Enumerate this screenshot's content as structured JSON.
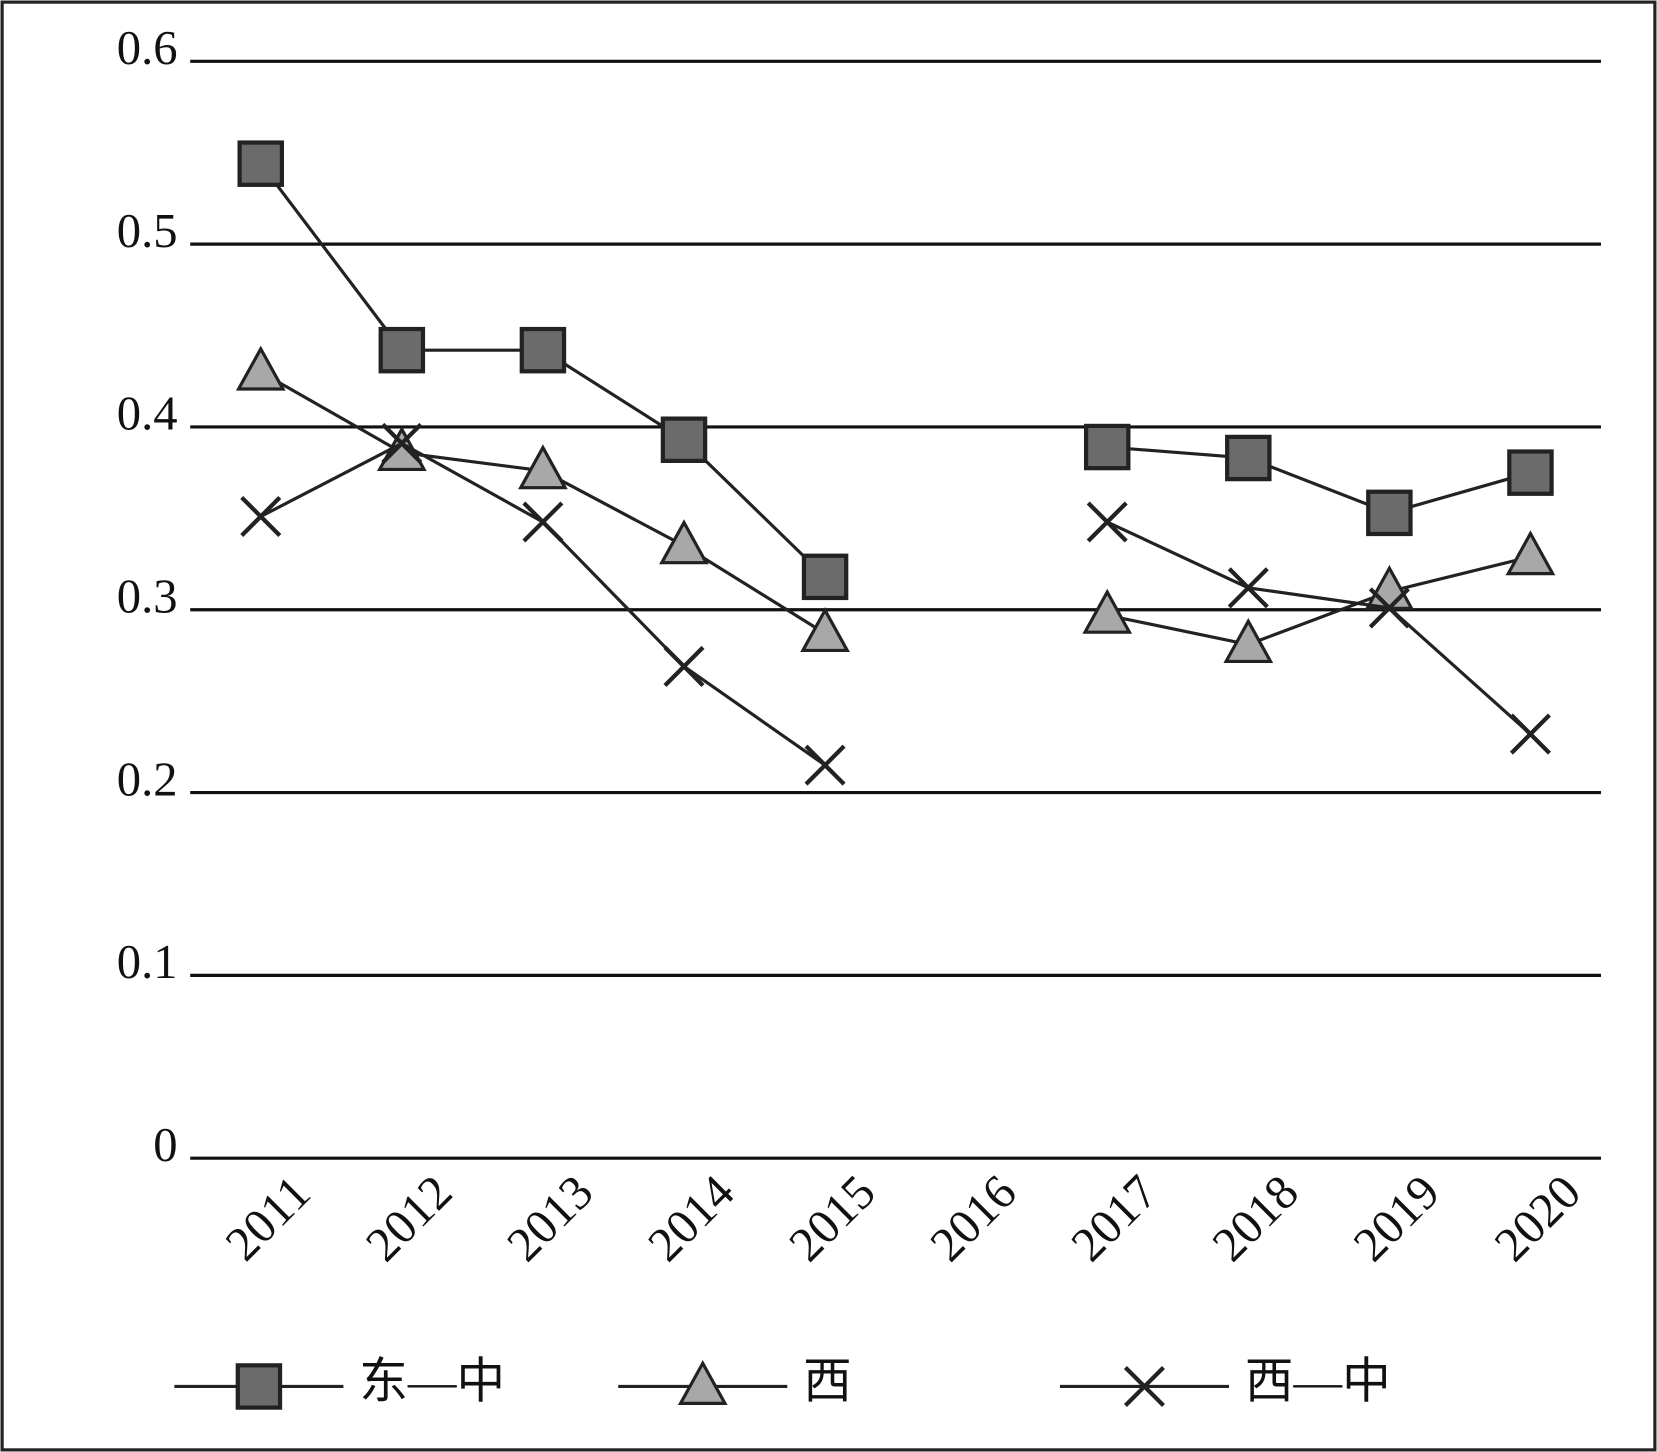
{
  "chart_data": {
    "type": "line",
    "categories": [
      "2011",
      "2012",
      "2013",
      "2014",
      "2015",
      "2016",
      "2017",
      "2018",
      "2019",
      "2020"
    ],
    "series": [
      {
        "name": "东—中",
        "color": "#6b6b6b",
        "marker": "square",
        "values": [
          0.544,
          0.442,
          0.442,
          0.393,
          0.318,
          null,
          0.389,
          0.383,
          0.353,
          0.375
        ]
      },
      {
        "name": "西",
        "color": "#a8a8a8",
        "marker": "triangle",
        "values": [
          0.43,
          0.386,
          0.376,
          0.335,
          0.287,
          null,
          0.297,
          0.281,
          0.31,
          0.329
        ]
      },
      {
        "name": "西—中",
        "color": "#222222",
        "marker": "x",
        "values": [
          0.351,
          0.391,
          0.348,
          0.269,
          0.215,
          null,
          0.348,
          0.312,
          0.301,
          0.232
        ]
      }
    ],
    "ylim": [
      0,
      0.6
    ],
    "yticks": [
      0,
      0.1,
      0.2,
      0.3,
      0.4,
      0.5,
      0.6
    ],
    "grid": true,
    "legend": "bottom"
  }
}
